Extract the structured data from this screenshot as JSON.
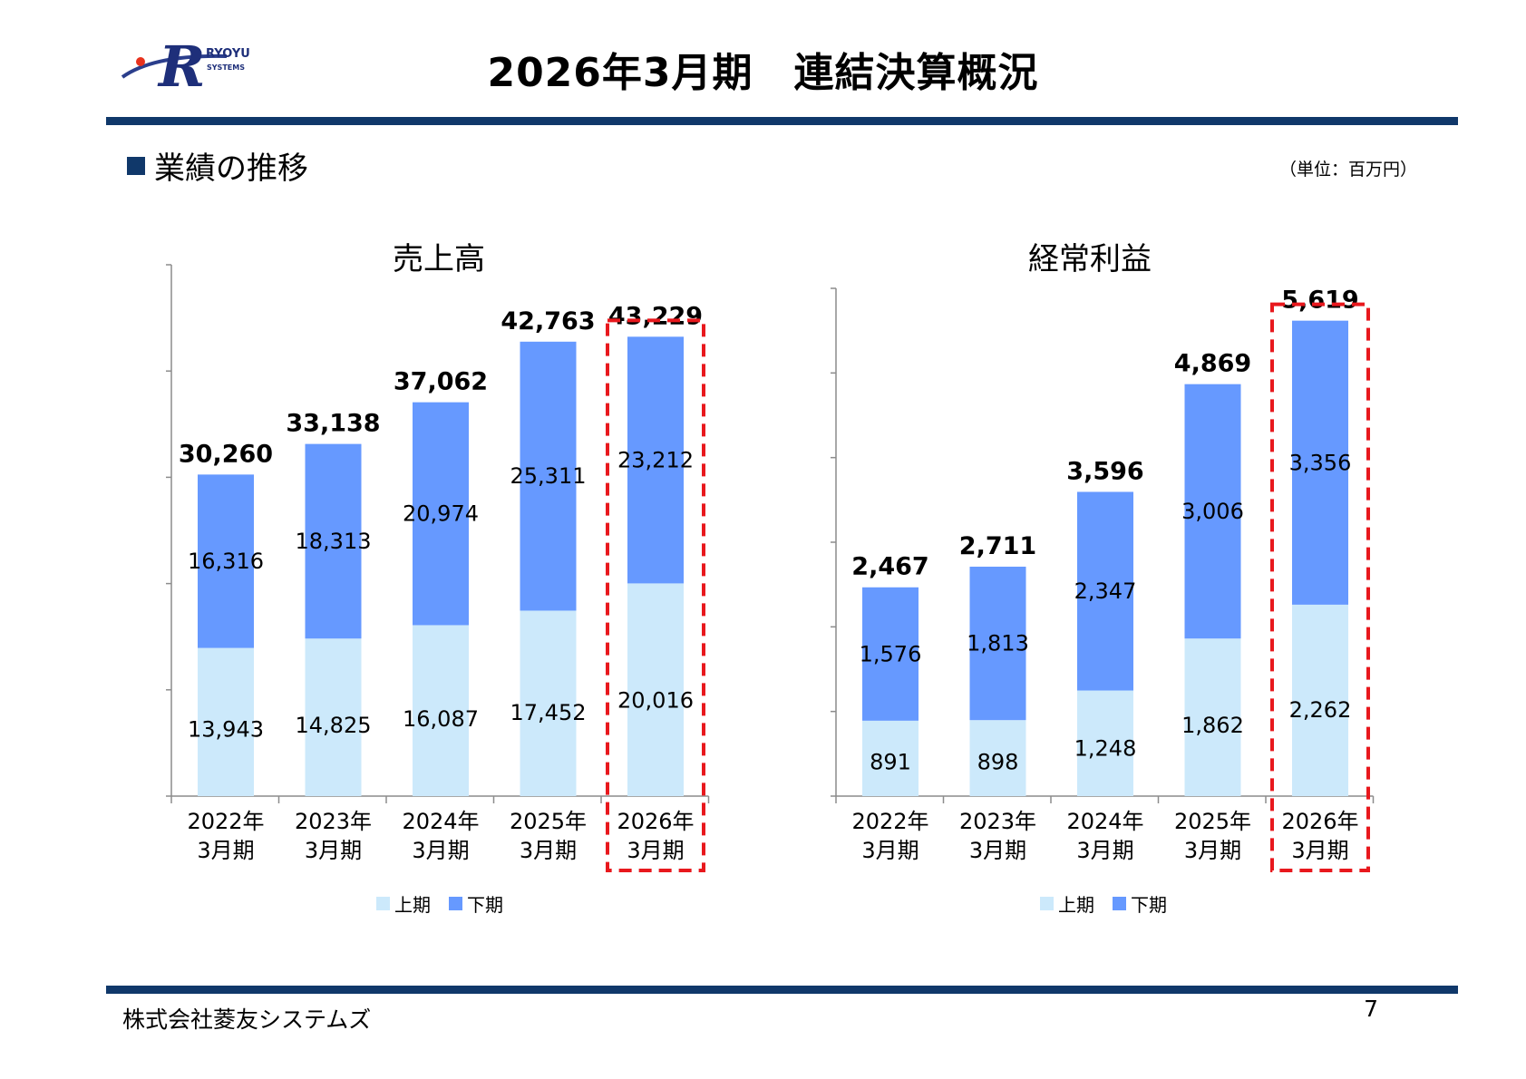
{
  "logo": {
    "text_line1": "RYOYU",
    "text_line2": "SYSTEMS"
  },
  "title": "2026年3月期　連結決算概況",
  "section": "業績の推移",
  "unit": "（単位：百万円）",
  "colors": {
    "navy": "#10386a",
    "upper_half": "#cce9fb",
    "lower_half": "#6699ff",
    "highlight": "#e8181d"
  },
  "footer": {
    "company": "株式会社菱友システムズ",
    "page": "7"
  },
  "chart_data": [
    {
      "type": "bar",
      "stacked": true,
      "title": "売上高",
      "categories": [
        "2022年\n3月期",
        "2023年\n3月期",
        "2024年\n3月期",
        "2025年\n3月期",
        "2026年\n3月期"
      ],
      "series": [
        {
          "name": "上期",
          "values": [
            13943,
            14825,
            16087,
            17452,
            20016
          ]
        },
        {
          "name": "下期",
          "values": [
            16316,
            18313,
            20974,
            25311,
            23212
          ]
        }
      ],
      "totals": [
        30260,
        33138,
        37062,
        42763,
        43229
      ],
      "labels_upper": [
        "13,943",
        "14,825",
        "16,087",
        "17,452",
        "20,016"
      ],
      "labels_lower": [
        "16,316",
        "18,313",
        "20,974",
        "25,311",
        "23,212"
      ],
      "labels_total": [
        "30,260",
        "33,138",
        "37,062",
        "42,763",
        "43,229"
      ],
      "ylim": [
        0,
        50000
      ],
      "highlight_index": 4,
      "legend": [
        "上期",
        "下期"
      ],
      "legend_position": "bottom"
    },
    {
      "type": "bar",
      "stacked": true,
      "title": "経常利益",
      "categories": [
        "2022年\n3月期",
        "2023年\n3月期",
        "2024年\n3月期",
        "2025年\n3月期",
        "2026年\n3月期"
      ],
      "series": [
        {
          "name": "上期",
          "values": [
            891,
            898,
            1248,
            1862,
            2262
          ]
        },
        {
          "name": "下期",
          "values": [
            1576,
            1813,
            2347,
            3006,
            3356
          ]
        }
      ],
      "totals": [
        2467,
        2711,
        3596,
        4869,
        5619
      ],
      "labels_upper": [
        "891",
        "898",
        "1,248",
        "1,862",
        "2,262"
      ],
      "labels_lower": [
        "1,576",
        "1,813",
        "2,347",
        "3,006",
        "3,356"
      ],
      "labels_total": [
        "2,467",
        "2,711",
        "3,596",
        "4,869",
        "5,619"
      ],
      "ylim": [
        0,
        6000
      ],
      "highlight_index": 4,
      "legend": [
        "上期",
        "下期"
      ],
      "legend_position": "bottom"
    }
  ]
}
